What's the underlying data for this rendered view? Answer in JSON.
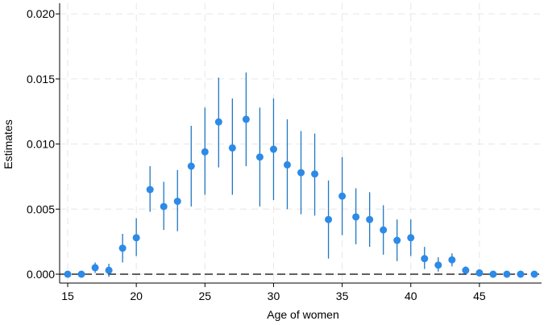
{
  "chart_data": {
    "type": "scatter",
    "variant": "point-estimates-with-confidence-intervals",
    "xlabel": "Age of women",
    "ylabel": "Estimates",
    "xlim": [
      14.5,
      49.5
    ],
    "ylim": [
      -0.0004,
      0.021
    ],
    "x_ticks": [
      15,
      20,
      25,
      30,
      35,
      40,
      45
    ],
    "y_ticks": [
      0.0,
      0.005,
      0.01,
      0.015,
      0.02
    ],
    "y_tick_labels": [
      "0.000",
      "0.005",
      "0.010",
      "0.015",
      "0.020"
    ],
    "grid": true,
    "reference_line": {
      "y": 0,
      "style": "dashed"
    },
    "colors": {
      "point": "#2d8ae6",
      "ci": "#1f77c4",
      "grid": "#e6e6e6",
      "axis": "#000000"
    },
    "series": [
      {
        "points": [
          {
            "x": 15,
            "y": 0.0,
            "lo": 0.0,
            "hi": 0.0
          },
          {
            "x": 16,
            "y": 0.0,
            "lo": 0.0,
            "hi": 0.0
          },
          {
            "x": 17,
            "y": 0.0005,
            "lo": 0.0001,
            "hi": 0.0009
          },
          {
            "x": 18,
            "y": 0.0003,
            "lo": -0.0002,
            "hi": 0.0008
          },
          {
            "x": 19,
            "y": 0.002,
            "lo": 0.0009,
            "hi": 0.0031
          },
          {
            "x": 20,
            "y": 0.0028,
            "lo": 0.0014,
            "hi": 0.0043
          },
          {
            "x": 21,
            "y": 0.0065,
            "lo": 0.0048,
            "hi": 0.0083
          },
          {
            "x": 22,
            "y": 0.0052,
            "lo": 0.0034,
            "hi": 0.0071
          },
          {
            "x": 23,
            "y": 0.0056,
            "lo": 0.0033,
            "hi": 0.008
          },
          {
            "x": 24,
            "y": 0.0083,
            "lo": 0.0052,
            "hi": 0.0114
          },
          {
            "x": 25,
            "y": 0.0094,
            "lo": 0.0061,
            "hi": 0.0128
          },
          {
            "x": 26,
            "y": 0.0117,
            "lo": 0.0082,
            "hi": 0.0151
          },
          {
            "x": 27,
            "y": 0.0097,
            "lo": 0.0061,
            "hi": 0.0135
          },
          {
            "x": 28,
            "y": 0.0119,
            "lo": 0.0083,
            "hi": 0.0155
          },
          {
            "x": 29,
            "y": 0.009,
            "lo": 0.0052,
            "hi": 0.0128
          },
          {
            "x": 30,
            "y": 0.0096,
            "lo": 0.0057,
            "hi": 0.0135
          },
          {
            "x": 31,
            "y": 0.0084,
            "lo": 0.005,
            "hi": 0.0119
          },
          {
            "x": 32,
            "y": 0.0078,
            "lo": 0.0046,
            "hi": 0.011
          },
          {
            "x": 33,
            "y": 0.0077,
            "lo": 0.0045,
            "hi": 0.0108
          },
          {
            "x": 34,
            "y": 0.0042,
            "lo": 0.0012,
            "hi": 0.0072
          },
          {
            "x": 35,
            "y": 0.006,
            "lo": 0.003,
            "hi": 0.009
          },
          {
            "x": 36,
            "y": 0.0044,
            "lo": 0.0023,
            "hi": 0.0066
          },
          {
            "x": 37,
            "y": 0.0042,
            "lo": 0.0021,
            "hi": 0.0063
          },
          {
            "x": 38,
            "y": 0.0034,
            "lo": 0.0015,
            "hi": 0.0053
          },
          {
            "x": 39,
            "y": 0.0026,
            "lo": 0.001,
            "hi": 0.0042
          },
          {
            "x": 40,
            "y": 0.0028,
            "lo": 0.0014,
            "hi": 0.0042
          },
          {
            "x": 41,
            "y": 0.0012,
            "lo": 0.0004,
            "hi": 0.0021
          },
          {
            "x": 42,
            "y": 0.0007,
            "lo": 0.0002,
            "hi": 0.0013
          },
          {
            "x": 43,
            "y": 0.0011,
            "lo": 0.0006,
            "hi": 0.0016
          },
          {
            "x": 44,
            "y": 0.0003,
            "lo": 0.0,
            "hi": 0.0006
          },
          {
            "x": 45,
            "y": 0.0001,
            "lo": 0.0,
            "hi": 0.0003
          },
          {
            "x": 46,
            "y": 0.0,
            "lo": 0.0,
            "hi": 0.0001
          },
          {
            "x": 47,
            "y": 0.0,
            "lo": 0.0,
            "hi": 0.0
          },
          {
            "x": 48,
            "y": 0.0,
            "lo": 0.0,
            "hi": 0.0
          },
          {
            "x": 49,
            "y": 0.0,
            "lo": 0.0,
            "hi": 0.0
          }
        ]
      }
    ]
  }
}
